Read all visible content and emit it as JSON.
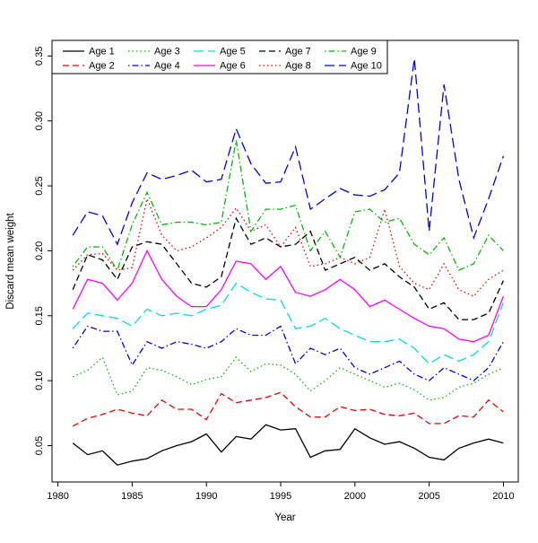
{
  "chart_data": {
    "type": "line",
    "title": "",
    "xlabel": "Year",
    "ylabel": "Discard mean weight",
    "grid": "off",
    "legend_position": "top-inside",
    "x": [
      1981,
      1982,
      1983,
      1984,
      1985,
      1986,
      1987,
      1988,
      1989,
      1990,
      1991,
      1992,
      1993,
      1994,
      1995,
      1996,
      1997,
      1998,
      1999,
      2000,
      2001,
      2002,
      2003,
      2004,
      2005,
      2006,
      2007,
      2008,
      2009,
      2010
    ],
    "xlim": [
      1979.6,
      2011.0
    ],
    "ylim": [
      0.022,
      0.362
    ],
    "x_ticks": [
      1980,
      1985,
      1990,
      1995,
      2000,
      2005,
      2010
    ],
    "x_tick_labels": [
      "1980",
      "1985",
      "1990",
      "1995",
      "2000",
      "2005",
      "2010"
    ],
    "y_ticks": [
      0.05,
      0.1,
      0.15,
      0.2,
      0.25,
      0.3,
      0.35
    ],
    "y_tick_labels": [
      "0.05",
      "0.10",
      "0.15",
      "0.20",
      "0.25",
      "0.30",
      "0.35"
    ],
    "series": [
      {
        "name": "Age 1",
        "color": "#000000",
        "linetype": "solid",
        "values": [
          0.052,
          0.043,
          0.046,
          0.035,
          0.038,
          0.04,
          0.046,
          0.05,
          0.053,
          0.059,
          0.045,
          0.057,
          0.055,
          0.066,
          0.062,
          0.063,
          0.041,
          0.046,
          0.047,
          0.063,
          0.056,
          0.051,
          0.053,
          0.048,
          0.041,
          0.039,
          0.048,
          0.052,
          0.055,
          0.052
        ]
      },
      {
        "name": "Age 2",
        "color": "#EE0000",
        "linetype": "dashed",
        "values": [
          0.065,
          0.071,
          0.074,
          0.078,
          0.075,
          0.073,
          0.085,
          0.078,
          0.078,
          0.07,
          0.09,
          0.083,
          0.085,
          0.087,
          0.091,
          0.08,
          0.072,
          0.072,
          0.08,
          0.077,
          0.078,
          0.074,
          0.073,
          0.075,
          0.067,
          0.067,
          0.073,
          0.072,
          0.085,
          0.076
        ]
      },
      {
        "name": "Age 3",
        "color": "#00BB00",
        "linetype": "dotted",
        "values": [
          0.103,
          0.108,
          0.118,
          0.089,
          0.092,
          0.11,
          0.108,
          0.103,
          0.097,
          0.101,
          0.103,
          0.118,
          0.107,
          0.113,
          0.112,
          0.105,
          0.092,
          0.1,
          0.11,
          0.105,
          0.1,
          0.095,
          0.098,
          0.093,
          0.085,
          0.087,
          0.095,
          0.098,
          0.105,
          0.11
        ]
      },
      {
        "name": "Age 4",
        "color": "#0000EE",
        "linetype": "dotdash",
        "values": [
          0.125,
          0.142,
          0.138,
          0.138,
          0.112,
          0.13,
          0.125,
          0.13,
          0.128,
          0.125,
          0.13,
          0.14,
          0.135,
          0.135,
          0.142,
          0.113,
          0.125,
          0.12,
          0.125,
          0.11,
          0.105,
          0.11,
          0.115,
          0.105,
          0.1,
          0.11,
          0.105,
          0.1,
          0.11,
          0.13
        ]
      },
      {
        "name": "Age 5",
        "color": "#00DDDD",
        "linetype": "longdash",
        "values": [
          0.14,
          0.152,
          0.15,
          0.148,
          0.142,
          0.155,
          0.15,
          0.152,
          0.15,
          0.155,
          0.158,
          0.175,
          0.168,
          0.163,
          0.162,
          0.14,
          0.142,
          0.148,
          0.14,
          0.135,
          0.13,
          0.13,
          0.132,
          0.125,
          0.113,
          0.12,
          0.115,
          0.12,
          0.13,
          0.16
        ]
      },
      {
        "name": "Age 6",
        "color": "#FF00FF",
        "linetype": "solid",
        "values": [
          0.155,
          0.178,
          0.175,
          0.162,
          0.175,
          0.2,
          0.178,
          0.165,
          0.157,
          0.157,
          0.17,
          0.192,
          0.19,
          0.178,
          0.188,
          0.168,
          0.165,
          0.17,
          0.178,
          0.17,
          0.157,
          0.162,
          0.155,
          0.148,
          0.142,
          0.14,
          0.132,
          0.13,
          0.135,
          0.165
        ]
      },
      {
        "name": "Age 7",
        "color": "#000000",
        "linetype": "dashed",
        "values": [
          0.17,
          0.197,
          0.193,
          0.178,
          0.203,
          0.207,
          0.205,
          0.19,
          0.175,
          0.172,
          0.18,
          0.225,
          0.205,
          0.21,
          0.203,
          0.205,
          0.215,
          0.185,
          0.19,
          0.195,
          0.185,
          0.19,
          0.18,
          0.172,
          0.155,
          0.16,
          0.147,
          0.147,
          0.152,
          0.177
        ]
      },
      {
        "name": "Age 8",
        "color": "#EE0000",
        "linetype": "dotted",
        "values": [
          0.185,
          0.197,
          0.198,
          0.185,
          0.187,
          0.24,
          0.212,
          0.2,
          0.203,
          0.21,
          0.218,
          0.233,
          0.215,
          0.22,
          0.203,
          0.218,
          0.188,
          0.19,
          0.195,
          0.19,
          0.195,
          0.232,
          0.188,
          0.175,
          0.17,
          0.19,
          0.17,
          0.165,
          0.178,
          0.185
        ]
      },
      {
        "name": "Age 9",
        "color": "#00BB00",
        "linetype": "dotdash",
        "values": [
          0.188,
          0.203,
          0.203,
          0.185,
          0.22,
          0.245,
          0.22,
          0.222,
          0.222,
          0.22,
          0.222,
          0.285,
          0.215,
          0.232,
          0.232,
          0.235,
          0.2,
          0.215,
          0.195,
          0.23,
          0.232,
          0.222,
          0.225,
          0.205,
          0.197,
          0.21,
          0.185,
          0.19,
          0.212,
          0.2
        ]
      },
      {
        "name": "Age 10",
        "color": "#0000EE",
        "linetype": "longdash",
        "values": [
          0.212,
          0.23,
          0.227,
          0.205,
          0.237,
          0.26,
          0.255,
          0.258,
          0.262,
          0.253,
          0.255,
          0.294,
          0.267,
          0.252,
          0.253,
          0.28,
          0.232,
          0.24,
          0.248,
          0.243,
          0.242,
          0.247,
          0.26,
          0.348,
          0.215,
          0.328,
          0.255,
          0.21,
          0.24,
          0.273
        ]
      }
    ]
  }
}
